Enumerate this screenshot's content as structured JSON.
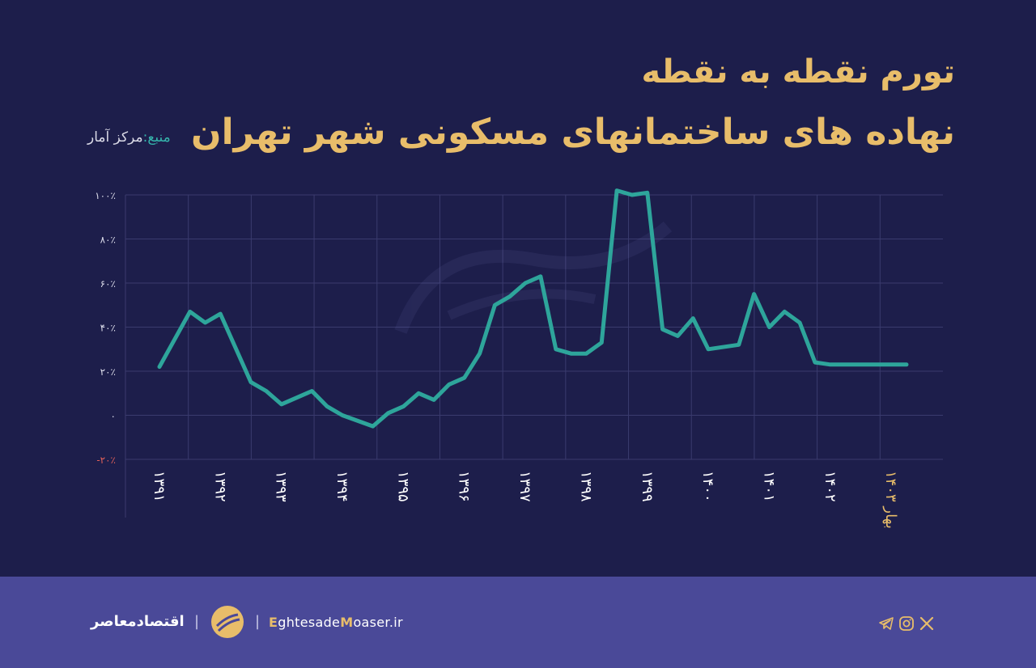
{
  "title": {
    "line1": "تورم نقطه به نقطه",
    "line2": "نهاده های ساختمانهای مسکونی شهر تهران"
  },
  "source": {
    "label": "منبع:",
    "value": "مرکز آمار"
  },
  "footer": {
    "brand": "اقتصادمعاصر",
    "url_parts": [
      "E",
      "ghtesade",
      "M",
      "oaser.ir"
    ],
    "social": [
      "x-icon",
      "instagram-icon",
      "telegram-icon"
    ]
  },
  "colors": {
    "background": "#1d1e4b",
    "line": "#2ea59b",
    "title": "#e8bd6a",
    "footer": "#4a4998",
    "negative_tick": "#e0605a"
  },
  "chart_data": {
    "type": "line",
    "title": "تورم نقطه به نقطه نهاده های ساختمانهای مسکونی شهر تهران",
    "ylim": [
      -20,
      100
    ],
    "y_ticks": [
      100,
      80,
      60,
      40,
      20,
      0,
      -20
    ],
    "y_tick_labels": [
      "۱۰۰٪",
      "۸۰٪",
      "۶۰٪",
      "۴۰٪",
      "۲۰٪",
      "۰",
      "-۲۰٪"
    ],
    "x_range": [
      1391,
      1403.25
    ],
    "x_ticks": [
      1391,
      1392,
      1393,
      1394,
      1395,
      1396,
      1397,
      1398,
      1399,
      1400,
      1401,
      1402,
      1403
    ],
    "x_tick_labels": [
      "۱۳۹۱",
      "۱۳۹۲",
      "۱۳۹۳",
      "۱۳۹۴",
      "۱۳۹۵",
      "۱۳۹۶",
      "۱۳۹۷",
      "۱۳۹۸",
      "۱۳۹۹",
      "۱۴۰۰",
      "۱۴۰۱",
      "۱۴۰۲",
      "بهار ۱۴۰۳"
    ],
    "grid": true,
    "series": [
      {
        "x": [
          1391,
          1391.5,
          1391.75,
          1392,
          1392.5,
          1392.75,
          1393,
          1393.5,
          1393.75,
          1394,
          1394.5,
          1394.75,
          1395,
          1395.25,
          1395.5,
          1395.75,
          1396,
          1396.25,
          1396.5,
          1396.75,
          1397,
          1397.25,
          1397.5,
          1397.75,
          1398,
          1398.25,
          1398.5,
          1398.75,
          1399,
          1399.25,
          1399.5,
          1399.75,
          1400,
          1400.5,
          1400.75,
          1401,
          1401.25,
          1401.5,
          1401.75,
          1402,
          1402.25,
          1402.5,
          1402.75,
          1403,
          1403.25
        ],
        "values": [
          22,
          47,
          42,
          46,
          15,
          11,
          5,
          11,
          4,
          0,
          -5,
          1,
          4,
          10,
          7,
          14,
          17,
          28,
          50,
          54,
          60,
          63,
          30,
          28,
          28,
          33,
          102,
          100,
          101,
          39,
          36,
          44,
          30,
          32,
          55,
          40,
          47,
          42,
          24,
          23,
          23,
          23,
          23,
          23,
          23
        ]
      }
    ]
  }
}
